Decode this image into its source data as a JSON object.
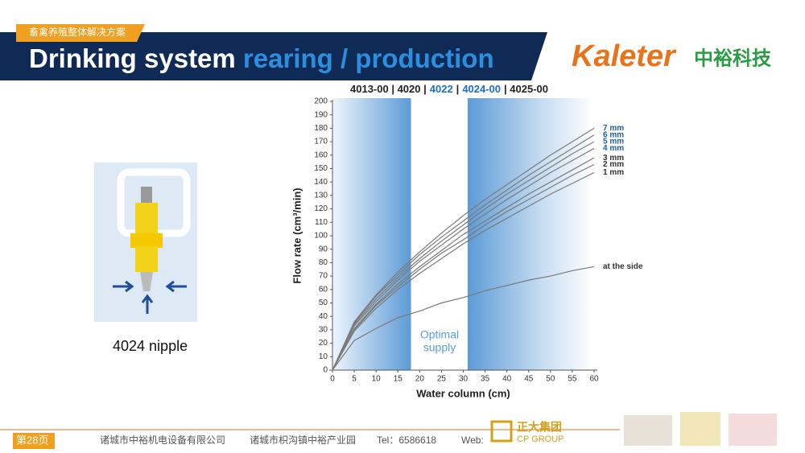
{
  "header": {
    "tag": "畜禽养殖整体解决方案",
    "title_plain": "Drinking system",
    "title_highlight": "rearing / production"
  },
  "logo": {
    "brand": "Kaleter",
    "name_cn": "中裕科技"
  },
  "product": {
    "caption": "4024 nipple"
  },
  "footer": {
    "page": "第28页",
    "company": "诸城市中裕机电设备有限公司",
    "address": "诸城市枳沟镇中裕产业园",
    "tel": "Tel：6586618",
    "web": "Web:",
    "group_cn": "正大集团",
    "group_en": "CP GROUP"
  },
  "chart_data": {
    "type": "line",
    "model_header": [
      {
        "text": "4013-00 | 4020 |",
        "highlight": false
      },
      {
        "text": "4022",
        "highlight": true
      },
      {
        "text": "|",
        "highlight": false
      },
      {
        "text": "4024-00",
        "highlight": true
      },
      {
        "text": "| 4025-00",
        "highlight": false
      }
    ],
    "band_label": [
      "Optimal",
      "supply"
    ],
    "bands": [
      {
        "from": 0,
        "to": 18
      },
      {
        "from": 31,
        "to": 60
      }
    ],
    "x_label": "Water column (cm)",
    "y_label": "Flow rate (cm³/min)",
    "x": [
      0,
      5,
      10,
      15,
      20,
      25,
      30,
      35,
      40,
      45,
      50,
      55,
      60
    ],
    "series": [
      {
        "name": "7 mm",
        "color": "#7a7a7a",
        "label_color": "#1f5fa0",
        "values": [
          0,
          36,
          56,
          73,
          88,
          102,
          115,
          127,
          138,
          149,
          160,
          170,
          180
        ]
      },
      {
        "name": "6 mm",
        "color": "#7a7a7a",
        "label_color": "#1f5fa0",
        "values": [
          0,
          35,
          55,
          71,
          86,
          99,
          111,
          123,
          134,
          145,
          155,
          165,
          175
        ]
      },
      {
        "name": "5 mm",
        "color": "#7a7a7a",
        "label_color": "#1f5fa0",
        "values": [
          0,
          34,
          53,
          69,
          83,
          96,
          108,
          120,
          131,
          141,
          151,
          161,
          170
        ]
      },
      {
        "name": "4 mm",
        "color": "#7a7a7a",
        "label_color": "#1f5fa0",
        "values": [
          0,
          33,
          51,
          67,
          81,
          93,
          105,
          116,
          127,
          137,
          147,
          156,
          165
        ]
      },
      {
        "name": "3 mm",
        "color": "#7a7a7a",
        "label_color": "#333333",
        "values": [
          0,
          31,
          49,
          64,
          77,
          89,
          101,
          111,
          121,
          131,
          140,
          149,
          158
        ]
      },
      {
        "name": "2 mm",
        "color": "#7a7a7a",
        "label_color": "#333333",
        "values": [
          0,
          30,
          48,
          62,
          75,
          87,
          97,
          108,
          118,
          127,
          136,
          145,
          153
        ]
      },
      {
        "name": "1 mm",
        "color": "#7a7a7a",
        "label_color": "#333333",
        "values": [
          0,
          29,
          46,
          60,
          72,
          83,
          94,
          104,
          113,
          122,
          131,
          139,
          147
        ]
      },
      {
        "name": "at the side",
        "color": "#7a7a7a",
        "label_color": "#333333",
        "values": [
          0,
          22,
          31,
          39,
          44,
          50,
          54,
          59,
          63,
          67,
          70,
          74,
          77
        ]
      }
    ],
    "xlim": [
      0,
      60
    ],
    "xticks": [
      0,
      5,
      10,
      15,
      20,
      25,
      30,
      35,
      40,
      45,
      50,
      55,
      60
    ],
    "ylim": [
      0,
      200
    ],
    "yticks": [
      0,
      10,
      20,
      30,
      40,
      50,
      60,
      70,
      80,
      90,
      100,
      110,
      120,
      130,
      140,
      150,
      160,
      170,
      180,
      190,
      200
    ]
  }
}
